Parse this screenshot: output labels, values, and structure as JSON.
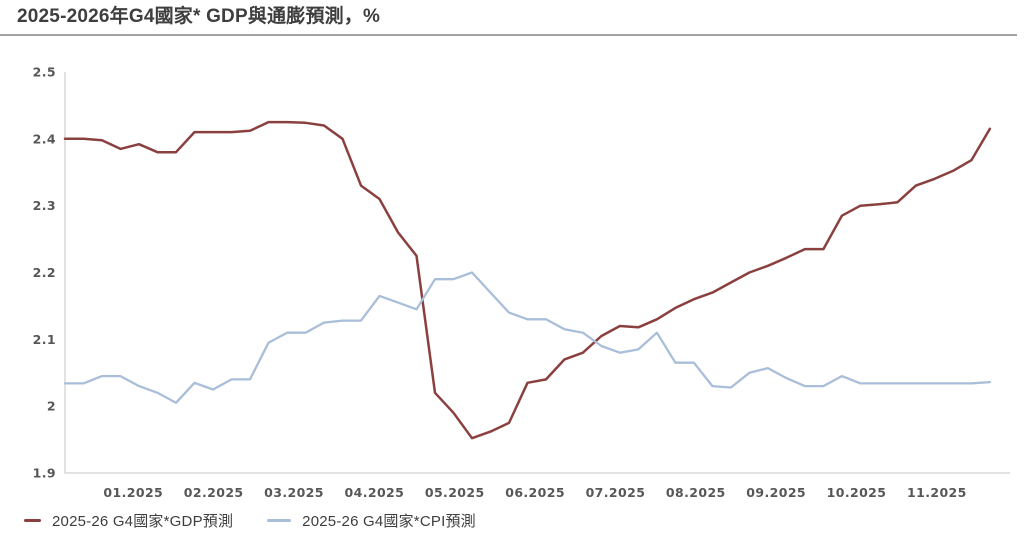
{
  "page": {
    "title": "2025-2026年G4國家* GDP與通膨預測，%"
  },
  "chart_data": {
    "type": "line",
    "title": "2025-2026年G4國家* GDP與通膨預測，%",
    "unit": "%",
    "grid": false,
    "legend_position": "bottom-left",
    "y_axis": {
      "min": 1.9,
      "max": 2.5,
      "tick_labels": [
        "2.5",
        "2.4",
        "2.3",
        "2.2",
        "2.1",
        "2",
        "1.9"
      ],
      "tick_values": [
        2.5,
        2.4,
        2.3,
        2.2,
        2.1,
        2.0,
        1.9
      ]
    },
    "x_axis": {
      "labels": [
        "01.2025",
        "02.2025",
        "03.2025",
        "04.2025",
        "05.2025",
        "06.2025",
        "07.2025",
        "08.2025",
        "09.2025",
        "10.2025",
        "11.2025"
      ],
      "x_min_month": 0.15,
      "x_max_month": 11.91
    },
    "x_start_month": 0.15,
    "x_step_month": 0.2302,
    "axis_color": "#d8d8d8",
    "series": [
      {
        "name": "2025-26 G4國家*GDP預測",
        "color": "#8b4040",
        "values": [
          2.4,
          2.4,
          2.398,
          2.385,
          2.392,
          2.38,
          2.38,
          2.41,
          2.41,
          2.41,
          2.412,
          2.425,
          2.425,
          2.424,
          2.42,
          2.4,
          2.33,
          2.31,
          2.26,
          2.225,
          2.02,
          1.99,
          1.952,
          1.962,
          1.975,
          2.035,
          2.04,
          2.07,
          2.08,
          2.105,
          2.12,
          2.118,
          2.13,
          2.147,
          2.16,
          2.17,
          2.185,
          2.2,
          2.21,
          2.222,
          2.235,
          2.235,
          2.285,
          2.3,
          2.302,
          2.305,
          2.33,
          2.34,
          2.352,
          2.368,
          2.415
        ]
      },
      {
        "name": "2025-26 G4國家*CPI預測",
        "color": "#a9bed9",
        "values": [
          2.034,
          2.034,
          2.045,
          2.045,
          2.03,
          2.02,
          2.005,
          2.035,
          2.025,
          2.04,
          2.04,
          2.095,
          2.11,
          2.11,
          2.125,
          2.128,
          2.128,
          2.165,
          2.155,
          2.145,
          2.19,
          2.19,
          2.2,
          2.17,
          2.14,
          2.13,
          2.13,
          2.115,
          2.11,
          2.09,
          2.08,
          2.085,
          2.11,
          2.065,
          2.065,
          2.03,
          2.028,
          2.05,
          2.057,
          2.042,
          2.03,
          2.03,
          2.045,
          2.034,
          2.034,
          2.034,
          2.034,
          2.034,
          2.034,
          2.034,
          2.036
        ]
      }
    ]
  }
}
